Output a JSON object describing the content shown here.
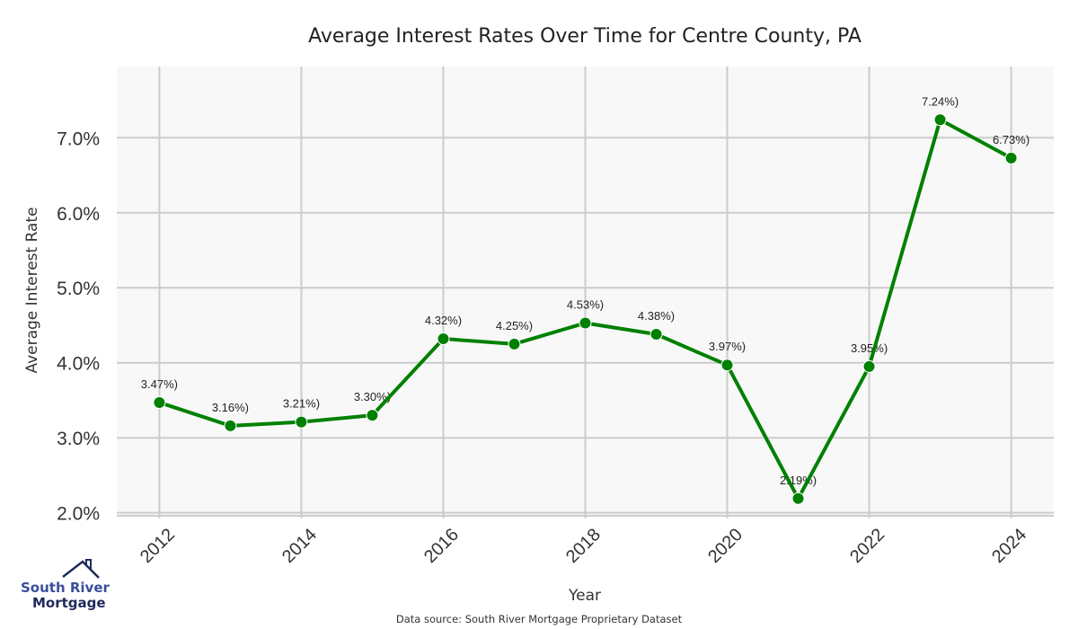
{
  "chart_data": {
    "type": "line",
    "title": "Average Interest Rates Over Time for Centre County, PA",
    "xlabel": "Year",
    "ylabel": "Average Interest Rate",
    "x": [
      2012,
      2013,
      2014,
      2015,
      2016,
      2017,
      2018,
      2019,
      2020,
      2021,
      2022,
      2023,
      2024
    ],
    "series": [
      {
        "name": "Average Interest Rate",
        "values": [
          3.47,
          3.16,
          3.21,
          3.3,
          4.32,
          4.25,
          4.53,
          4.38,
          3.97,
          2.19,
          3.95,
          7.24,
          6.73
        ],
        "data_labels": [
          "3.47%)",
          "3.16%)",
          "3.21%)",
          "3.30%)",
          "4.32%)",
          "4.25%)",
          "4.53%)",
          "4.38%)",
          "3.97%)",
          "2.19%)",
          "3.95%)",
          "7.24%)",
          "6.73%)"
        ]
      }
    ],
    "xticks": [
      2012,
      2014,
      2016,
      2018,
      2020,
      2022,
      2024
    ],
    "xtick_labels": [
      "2012",
      "2014",
      "2016",
      "2018",
      "2020",
      "2022",
      "2024"
    ],
    "yticks": [
      2.0,
      3.0,
      4.0,
      5.0,
      6.0,
      7.0
    ],
    "ytick_labels": [
      "2.0%",
      "3.0%",
      "4.0%",
      "5.0%",
      "6.0%",
      "7.0%"
    ],
    "xlim": [
      2011.4,
      2024.6
    ],
    "ylim": [
      1.96,
      7.95
    ],
    "grid": true,
    "line_color": "#008000",
    "plot_background": "#f8f8f8",
    "grid_color": "#cccccc"
  },
  "footer": {
    "source": "Data source: South River Mortgage Proprietary Dataset"
  },
  "logo": {
    "line1": "South River",
    "line2": "Mortgage"
  }
}
